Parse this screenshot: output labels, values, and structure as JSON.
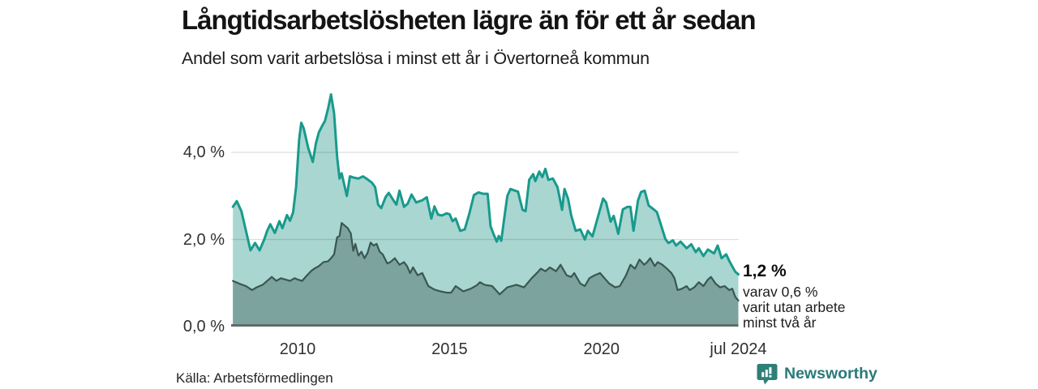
{
  "header": {
    "title": "Långtidsarbetslösheten lägre än för ett år sedan",
    "subtitle": "Andel som varit arbetslösa i minst ett år i Övertorneå kommun"
  },
  "chart_data": {
    "type": "area",
    "title": "Långtidsarbetslösheten lägre än för ett år sedan",
    "subtitle": "Andel som varit arbetslösa i minst ett år i Övertorneå kommun",
    "unit": "%",
    "grid": "horizontal",
    "legend_position": "none",
    "colors": {
      "series1_line": "#189a8c",
      "series1_fill": "#a9d6d1",
      "series2_line": "#3a5751",
      "series2_fill": "#7ca39d",
      "gridline": "rgba(0,0,0,0.13)",
      "baseline": "#5d6d69",
      "brand_teal": "#2b7a7c"
    },
    "y_axis": {
      "range": [
        0,
        5.5
      ],
      "ticks": [
        {
          "label": "0,0 %",
          "value": 0
        },
        {
          "label": "2,0 %",
          "value": 2
        },
        {
          "label": "4,0 %",
          "value": 4
        }
      ]
    },
    "x_axis": {
      "range_years": [
        2007.87,
        2024.5
      ],
      "ticks": [
        {
          "label": "2010",
          "year": 2010
        },
        {
          "label": "2015",
          "year": 2015
        },
        {
          "label": "2020",
          "year": 2020
        },
        {
          "label": "jul 2024",
          "year": 2024.5
        }
      ]
    },
    "annotation": {
      "headline": "1,2 %",
      "lines": [
        "varav 0,6 %",
        "varit utan arbete",
        "minst två år"
      ]
    },
    "series": [
      {
        "name": "arbetslösa minst ett år",
        "color": "#189a8c",
        "fill": "#a9d6d1",
        "last_value_label": "1,2 %",
        "points": [
          [
            2007.87,
            2.75
          ],
          [
            2008.0,
            2.88
          ],
          [
            2008.15,
            2.65
          ],
          [
            2008.3,
            2.2
          ],
          [
            2008.45,
            1.75
          ],
          [
            2008.6,
            1.92
          ],
          [
            2008.75,
            1.75
          ],
          [
            2008.9,
            2.0
          ],
          [
            2009.0,
            2.2
          ],
          [
            2009.1,
            2.35
          ],
          [
            2009.25,
            2.15
          ],
          [
            2009.4,
            2.42
          ],
          [
            2009.5,
            2.26
          ],
          [
            2009.65,
            2.56
          ],
          [
            2009.75,
            2.43
          ],
          [
            2009.85,
            2.62
          ],
          [
            2009.95,
            3.2
          ],
          [
            2010.05,
            4.3
          ],
          [
            2010.12,
            4.68
          ],
          [
            2010.2,
            4.55
          ],
          [
            2010.35,
            4.1
          ],
          [
            2010.5,
            3.78
          ],
          [
            2010.6,
            4.2
          ],
          [
            2010.7,
            4.46
          ],
          [
            2010.8,
            4.6
          ],
          [
            2010.9,
            4.72
          ],
          [
            2011.0,
            5.0
          ],
          [
            2011.1,
            5.33
          ],
          [
            2011.2,
            4.89
          ],
          [
            2011.3,
            3.9
          ],
          [
            2011.38,
            3.4
          ],
          [
            2011.45,
            3.52
          ],
          [
            2011.52,
            3.3
          ],
          [
            2011.62,
            3.0
          ],
          [
            2011.72,
            3.45
          ],
          [
            2011.85,
            3.42
          ],
          [
            2012.0,
            3.4
          ],
          [
            2012.15,
            3.45
          ],
          [
            2012.3,
            3.38
          ],
          [
            2012.45,
            3.3
          ],
          [
            2012.55,
            3.2
          ],
          [
            2012.65,
            2.8
          ],
          [
            2012.75,
            2.72
          ],
          [
            2012.9,
            2.98
          ],
          [
            2013.0,
            3.07
          ],
          [
            2013.15,
            2.9
          ],
          [
            2013.25,
            2.8
          ],
          [
            2013.35,
            3.12
          ],
          [
            2013.5,
            2.75
          ],
          [
            2013.62,
            2.82
          ],
          [
            2013.75,
            3.03
          ],
          [
            2013.9,
            2.85
          ],
          [
            2014.1,
            2.9
          ],
          [
            2014.25,
            2.97
          ],
          [
            2014.4,
            2.48
          ],
          [
            2014.5,
            2.76
          ],
          [
            2014.62,
            2.57
          ],
          [
            2014.75,
            2.55
          ],
          [
            2014.9,
            2.6
          ],
          [
            2015.0,
            2.58
          ],
          [
            2015.1,
            2.42
          ],
          [
            2015.2,
            2.48
          ],
          [
            2015.35,
            2.2
          ],
          [
            2015.5,
            2.23
          ],
          [
            2015.65,
            2.6
          ],
          [
            2015.8,
            3.02
          ],
          [
            2015.95,
            3.08
          ],
          [
            2016.1,
            3.05
          ],
          [
            2016.25,
            3.05
          ],
          [
            2016.35,
            2.3
          ],
          [
            2016.45,
            2.12
          ],
          [
            2016.55,
            1.95
          ],
          [
            2016.62,
            2.08
          ],
          [
            2016.7,
            1.97
          ],
          [
            2016.8,
            2.5
          ],
          [
            2016.9,
            3.0
          ],
          [
            2017.0,
            3.16
          ],
          [
            2017.12,
            3.13
          ],
          [
            2017.25,
            3.1
          ],
          [
            2017.4,
            2.68
          ],
          [
            2017.5,
            2.65
          ],
          [
            2017.62,
            3.37
          ],
          [
            2017.75,
            3.5
          ],
          [
            2017.82,
            3.34
          ],
          [
            2017.95,
            3.56
          ],
          [
            2018.05,
            3.43
          ],
          [
            2018.15,
            3.62
          ],
          [
            2018.25,
            3.37
          ],
          [
            2018.4,
            3.4
          ],
          [
            2018.55,
            3.2
          ],
          [
            2018.7,
            2.68
          ],
          [
            2018.78,
            3.16
          ],
          [
            2018.9,
            2.93
          ],
          [
            2019.0,
            2.56
          ],
          [
            2019.15,
            2.2
          ],
          [
            2019.3,
            2.23
          ],
          [
            2019.45,
            2.0
          ],
          [
            2019.55,
            2.2
          ],
          [
            2019.7,
            2.07
          ],
          [
            2019.9,
            2.57
          ],
          [
            2020.05,
            2.94
          ],
          [
            2020.15,
            2.85
          ],
          [
            2020.3,
            2.41
          ],
          [
            2020.4,
            2.54
          ],
          [
            2020.55,
            2.13
          ],
          [
            2020.7,
            2.69
          ],
          [
            2020.85,
            2.75
          ],
          [
            2020.95,
            2.75
          ],
          [
            2021.05,
            2.2
          ],
          [
            2021.2,
            2.9
          ],
          [
            2021.3,
            3.09
          ],
          [
            2021.42,
            3.12
          ],
          [
            2021.55,
            2.78
          ],
          [
            2021.7,
            2.7
          ],
          [
            2021.82,
            2.63
          ],
          [
            2021.92,
            2.41
          ],
          [
            2022.1,
            2.01
          ],
          [
            2022.2,
            1.92
          ],
          [
            2022.35,
            1.98
          ],
          [
            2022.45,
            1.86
          ],
          [
            2022.6,
            1.95
          ],
          [
            2022.8,
            1.8
          ],
          [
            2022.95,
            1.89
          ],
          [
            2023.1,
            1.71
          ],
          [
            2023.2,
            1.8
          ],
          [
            2023.35,
            1.62
          ],
          [
            2023.5,
            1.77
          ],
          [
            2023.7,
            1.68
          ],
          [
            2023.82,
            1.86
          ],
          [
            2023.95,
            1.57
          ],
          [
            2024.1,
            1.66
          ],
          [
            2024.2,
            1.51
          ],
          [
            2024.4,
            1.26
          ],
          [
            2024.5,
            1.2
          ]
        ]
      },
      {
        "name": "varav arbetslösa minst två år",
        "color": "#3a5751",
        "fill": "#7ca39d",
        "last_value_label": "0,6 %",
        "points": [
          [
            2007.87,
            1.05
          ],
          [
            2008.1,
            0.98
          ],
          [
            2008.3,
            0.93
          ],
          [
            2008.5,
            0.84
          ],
          [
            2008.65,
            0.9
          ],
          [
            2008.85,
            0.96
          ],
          [
            2009.0,
            1.05
          ],
          [
            2009.15,
            1.14
          ],
          [
            2009.3,
            1.05
          ],
          [
            2009.45,
            1.11
          ],
          [
            2009.6,
            1.08
          ],
          [
            2009.75,
            1.05
          ],
          [
            2009.9,
            1.11
          ],
          [
            2010.0,
            1.08
          ],
          [
            2010.15,
            1.05
          ],
          [
            2010.3,
            1.17
          ],
          [
            2010.45,
            1.28
          ],
          [
            2010.55,
            1.33
          ],
          [
            2010.7,
            1.39
          ],
          [
            2010.85,
            1.48
          ],
          [
            2011.0,
            1.5
          ],
          [
            2011.1,
            1.57
          ],
          [
            2011.2,
            1.66
          ],
          [
            2011.3,
            2.05
          ],
          [
            2011.38,
            2.08
          ],
          [
            2011.45,
            2.38
          ],
          [
            2011.55,
            2.32
          ],
          [
            2011.65,
            2.26
          ],
          [
            2011.75,
            2.14
          ],
          [
            2011.83,
            1.74
          ],
          [
            2011.9,
            1.9
          ],
          [
            2012.0,
            1.63
          ],
          [
            2012.1,
            1.72
          ],
          [
            2012.2,
            1.57
          ],
          [
            2012.3,
            1.69
          ],
          [
            2012.4,
            1.93
          ],
          [
            2012.5,
            1.86
          ],
          [
            2012.6,
            1.9
          ],
          [
            2012.7,
            1.72
          ],
          [
            2012.8,
            1.66
          ],
          [
            2012.95,
            1.45
          ],
          [
            2013.05,
            1.48
          ],
          [
            2013.2,
            1.57
          ],
          [
            2013.35,
            1.42
          ],
          [
            2013.5,
            1.48
          ],
          [
            2013.6,
            1.39
          ],
          [
            2013.7,
            1.23
          ],
          [
            2013.8,
            1.36
          ],
          [
            2013.95,
            1.18
          ],
          [
            2014.1,
            1.23
          ],
          [
            2014.3,
            0.93
          ],
          [
            2014.5,
            0.85
          ],
          [
            2014.7,
            0.81
          ],
          [
            2014.9,
            0.78
          ],
          [
            2015.05,
            0.78
          ],
          [
            2015.2,
            0.93
          ],
          [
            2015.45,
            0.81
          ],
          [
            2015.7,
            0.87
          ],
          [
            2015.9,
            0.95
          ],
          [
            2016.0,
            1.02
          ],
          [
            2016.15,
            0.96
          ],
          [
            2016.4,
            0.93
          ],
          [
            2016.65,
            0.74
          ],
          [
            2016.9,
            0.9
          ],
          [
            2017.2,
            0.96
          ],
          [
            2017.45,
            0.9
          ],
          [
            2017.7,
            1.11
          ],
          [
            2017.9,
            1.25
          ],
          [
            2018.0,
            1.33
          ],
          [
            2018.15,
            1.27
          ],
          [
            2018.3,
            1.36
          ],
          [
            2018.5,
            1.27
          ],
          [
            2018.65,
            1.42
          ],
          [
            2018.85,
            1.18
          ],
          [
            2019.0,
            1.14
          ],
          [
            2019.1,
            1.23
          ],
          [
            2019.3,
            0.99
          ],
          [
            2019.45,
            0.93
          ],
          [
            2019.6,
            1.11
          ],
          [
            2019.75,
            1.17
          ],
          [
            2019.95,
            1.23
          ],
          [
            2020.1,
            1.11
          ],
          [
            2020.25,
            0.99
          ],
          [
            2020.45,
            0.9
          ],
          [
            2020.6,
            0.93
          ],
          [
            2020.8,
            1.17
          ],
          [
            2020.95,
            1.42
          ],
          [
            2021.1,
            1.33
          ],
          [
            2021.25,
            1.54
          ],
          [
            2021.4,
            1.42
          ],
          [
            2021.5,
            1.48
          ],
          [
            2021.6,
            1.57
          ],
          [
            2021.75,
            1.39
          ],
          [
            2021.85,
            1.48
          ],
          [
            2022.0,
            1.42
          ],
          [
            2022.15,
            1.33
          ],
          [
            2022.3,
            1.23
          ],
          [
            2022.4,
            1.11
          ],
          [
            2022.5,
            0.84
          ],
          [
            2022.65,
            0.87
          ],
          [
            2022.8,
            0.93
          ],
          [
            2022.9,
            0.84
          ],
          [
            2023.05,
            0.9
          ],
          [
            2023.2,
            1.02
          ],
          [
            2023.35,
            0.93
          ],
          [
            2023.5,
            1.08
          ],
          [
            2023.6,
            1.14
          ],
          [
            2023.75,
            0.99
          ],
          [
            2023.9,
            0.9
          ],
          [
            2024.05,
            0.93
          ],
          [
            2024.2,
            0.84
          ],
          [
            2024.3,
            0.87
          ],
          [
            2024.4,
            0.68
          ],
          [
            2024.5,
            0.6
          ]
        ]
      }
    ]
  },
  "footer": {
    "source": "Källa: Arbetsförmedlingen",
    "brand": "Newsworthy"
  }
}
